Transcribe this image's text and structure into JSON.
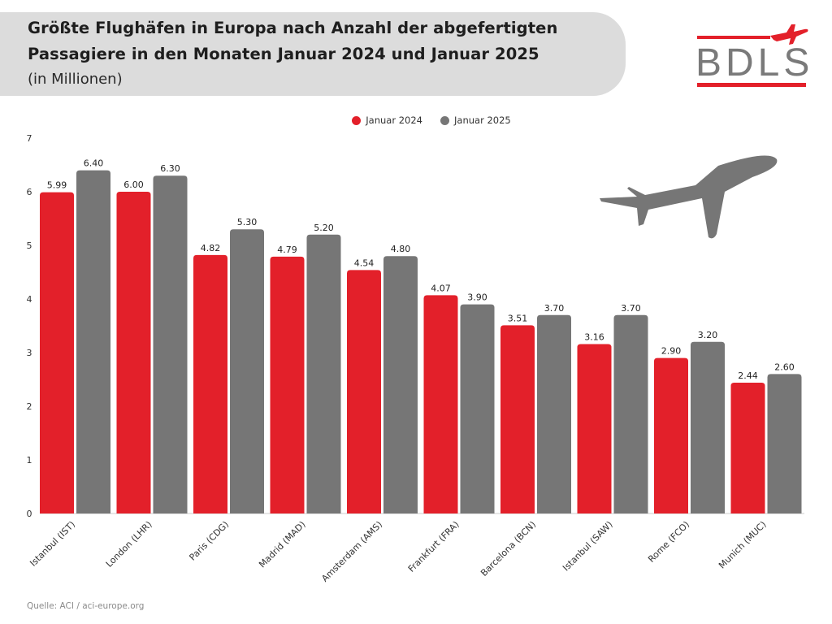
{
  "header": {
    "title_line1": "Größte Flughäfen in Europa nach Anzahl der abgefertigten",
    "title_line2": "Passagiere in den Monaten Januar 2024 und Januar 2025",
    "subtitle": "(in Millionen)"
  },
  "logo": {
    "text": "BDLS",
    "icon": "airplane-icon",
    "color": "#e3202a"
  },
  "source": "Quelle: ACI / aci-europe.org",
  "chart_data": {
    "type": "bar",
    "title": "Größte Flughäfen in Europa nach Anzahl der abgefertigten Passagiere in den Monaten Januar 2024 und Januar 2025",
    "subtitle": "(in Millionen)",
    "xlabel": "",
    "ylabel": "",
    "ylim": [
      0,
      7
    ],
    "yticks": [
      0,
      1,
      2,
      3,
      4,
      5,
      6,
      7
    ],
    "grid": false,
    "legend_position": "top-center",
    "categories": [
      "Istanbul (IST)",
      "London (LHR)",
      "Paris (CDG)",
      "Madrid (MAD)",
      "Amsterdam (AMS)",
      "Frankfurt (FRA)",
      "Barcelona (BCN)",
      "Istanbul (SAW)",
      "Rome (FCO)",
      "Munich (MUC)"
    ],
    "series": [
      {
        "name": "Januar 2024",
        "color": "#e3202a",
        "values": [
          5.99,
          6.0,
          4.82,
          4.79,
          4.54,
          4.07,
          3.51,
          3.16,
          2.9,
          2.44
        ]
      },
      {
        "name": "Januar 2025",
        "color": "#767676",
        "values": [
          6.4,
          6.3,
          5.3,
          5.2,
          4.8,
          3.9,
          3.7,
          3.7,
          3.2,
          2.6
        ]
      }
    ]
  },
  "decoration": {
    "plane_icon": "airplane-icon",
    "plane_color": "#767676"
  }
}
